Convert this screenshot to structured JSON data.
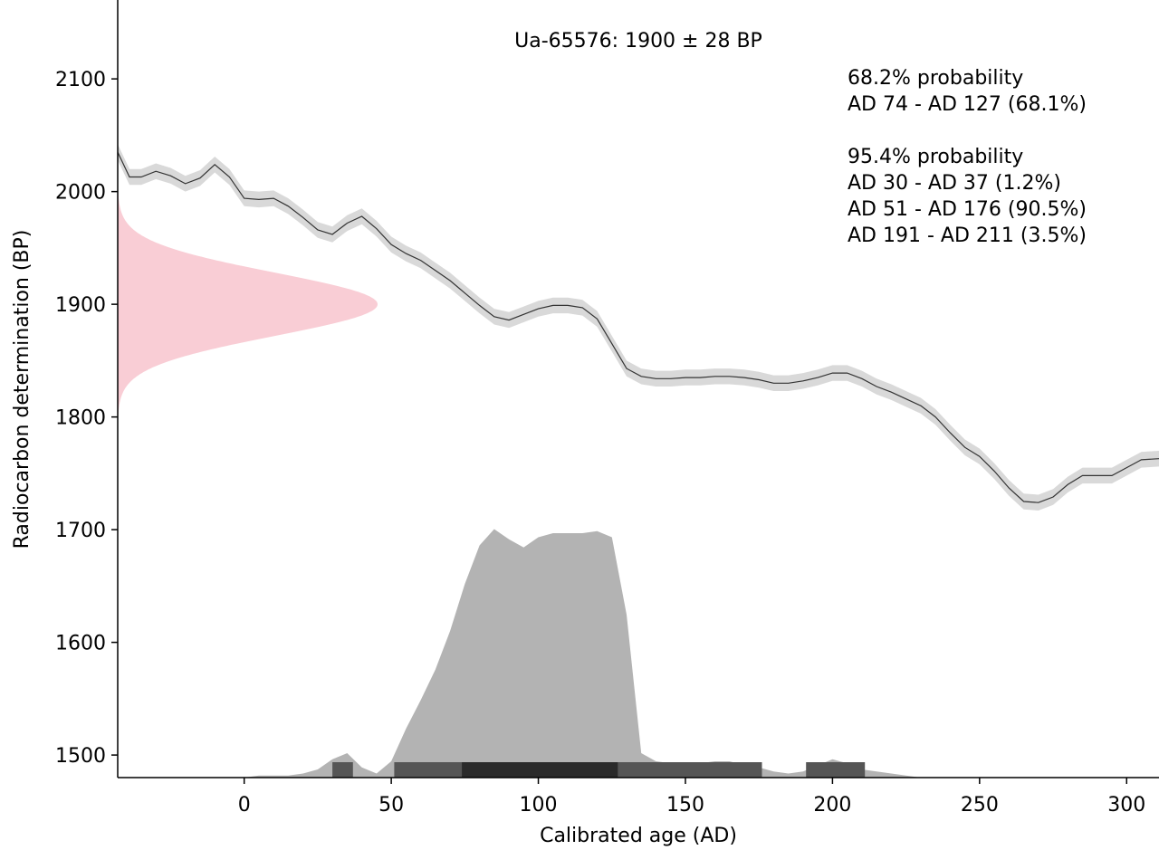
{
  "chart_data": {
    "type": "area",
    "title": "Ua-65576: 1900 ± 28 BP",
    "xlabel": "Calibrated age (AD)",
    "ylabel": "Radiocarbon determination (BP)",
    "xlim": [
      -43,
      311
    ],
    "ylim": [
      1480,
      2170
    ],
    "x_ticks": [
      0,
      50,
      100,
      150,
      200,
      250,
      300
    ],
    "y_ticks": [
      1500,
      1600,
      1700,
      1800,
      1900,
      2000,
      2100
    ],
    "grid": false,
    "annotations": [
      "68.2% probability",
      "AD 74 - AD 127 (68.1%)",
      "",
      "95.4% probability",
      "AD 30 - AD 37 (1.2%)",
      "AD 51 - AD 176 (90.5%)",
      "AD 191 - AD 211 (3.5%)"
    ],
    "colors": {
      "curve_band": "#d9d9d9",
      "curve_line": "#333333",
      "measurement": "#f9cdd5",
      "probability": "#b3b3b3",
      "range_95": "#555555",
      "range_68": "#2a2a2a"
    },
    "radiocarbon_measurement": {
      "mean_bp": 1900,
      "sigma": 28
    },
    "calibration_curve": {
      "x": [
        -43,
        -39,
        -35,
        -30,
        -25,
        -20,
        -15,
        -10,
        -5,
        0,
        5,
        10,
        15,
        20,
        25,
        30,
        35,
        40,
        45,
        50,
        55,
        60,
        65,
        70,
        75,
        80,
        85,
        90,
        95,
        100,
        105,
        110,
        115,
        120,
        125,
        130,
        135,
        140,
        145,
        150,
        155,
        160,
        165,
        170,
        175,
        180,
        185,
        190,
        195,
        200,
        205,
        210,
        215,
        220,
        225,
        230,
        235,
        240,
        245,
        250,
        255,
        260,
        265,
        270,
        275,
        280,
        285,
        290,
        295,
        300,
        305,
        311
      ],
      "y": [
        2035,
        2013,
        2013,
        2018,
        2014,
        2007,
        2012,
        2024,
        2013,
        1994,
        1993,
        1994,
        1987,
        1977,
        1966,
        1962,
        1972,
        1978,
        1967,
        1953,
        1945,
        1939,
        1930,
        1921,
        1910,
        1899,
        1889,
        1886,
        1891,
        1896,
        1899,
        1899,
        1897,
        1887,
        1865,
        1843,
        1836,
        1834,
        1834,
        1835,
        1835,
        1836,
        1836,
        1835,
        1833,
        1830,
        1830,
        1832,
        1835,
        1839,
        1839,
        1834,
        1827,
        1822,
        1816,
        1810,
        1800,
        1786,
        1773,
        1765,
        1752,
        1737,
        1725,
        1724,
        1729,
        1740,
        1748,
        1748,
        1748,
        1755,
        1762,
        1763
      ],
      "sigma": 7
    },
    "calibrated_probability": {
      "x": [
        -43,
        0,
        5,
        15,
        20,
        25,
        30,
        35,
        40,
        45,
        50,
        55,
        60,
        65,
        70,
        75,
        80,
        85,
        90,
        95,
        100,
        105,
        110,
        115,
        120,
        125,
        130,
        135,
        140,
        145,
        150,
        155,
        160,
        165,
        170,
        175,
        180,
        185,
        190,
        195,
        200,
        205,
        210,
        215,
        220,
        225,
        230,
        240,
        311
      ],
      "y": [
        0.0,
        0.0,
        0.01,
        0.01,
        0.02,
        0.04,
        0.09,
        0.12,
        0.05,
        0.02,
        0.08,
        0.24,
        0.38,
        0.53,
        0.72,
        0.95,
        1.14,
        1.22,
        1.17,
        1.13,
        1.18,
        1.2,
        1.2,
        1.2,
        1.21,
        1.18,
        0.8,
        0.12,
        0.08,
        0.07,
        0.07,
        0.07,
        0.08,
        0.08,
        0.06,
        0.05,
        0.03,
        0.02,
        0.03,
        0.06,
        0.09,
        0.07,
        0.04,
        0.03,
        0.02,
        0.01,
        0.0,
        0.0,
        0.0
      ]
    },
    "ranges_95": [
      [
        30,
        37
      ],
      [
        51,
        176
      ],
      [
        191,
        211
      ]
    ],
    "ranges_68": [
      [
        74,
        127
      ]
    ]
  }
}
